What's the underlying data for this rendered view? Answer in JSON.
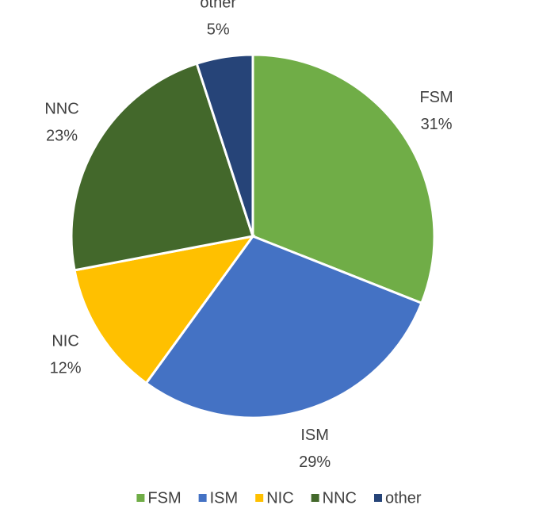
{
  "chart_data": {
    "type": "pie",
    "categories": [
      "FSM",
      "ISM",
      "NIC",
      "NNC",
      "other"
    ],
    "values": [
      31,
      29,
      12,
      23,
      5
    ],
    "value_labels": [
      "31%",
      "29%",
      "12%",
      "23%",
      "5%"
    ],
    "colors": [
      "#70ad47",
      "#4472c4",
      "#ffc000",
      "#43682b",
      "#264478"
    ],
    "legend": "bottom"
  }
}
